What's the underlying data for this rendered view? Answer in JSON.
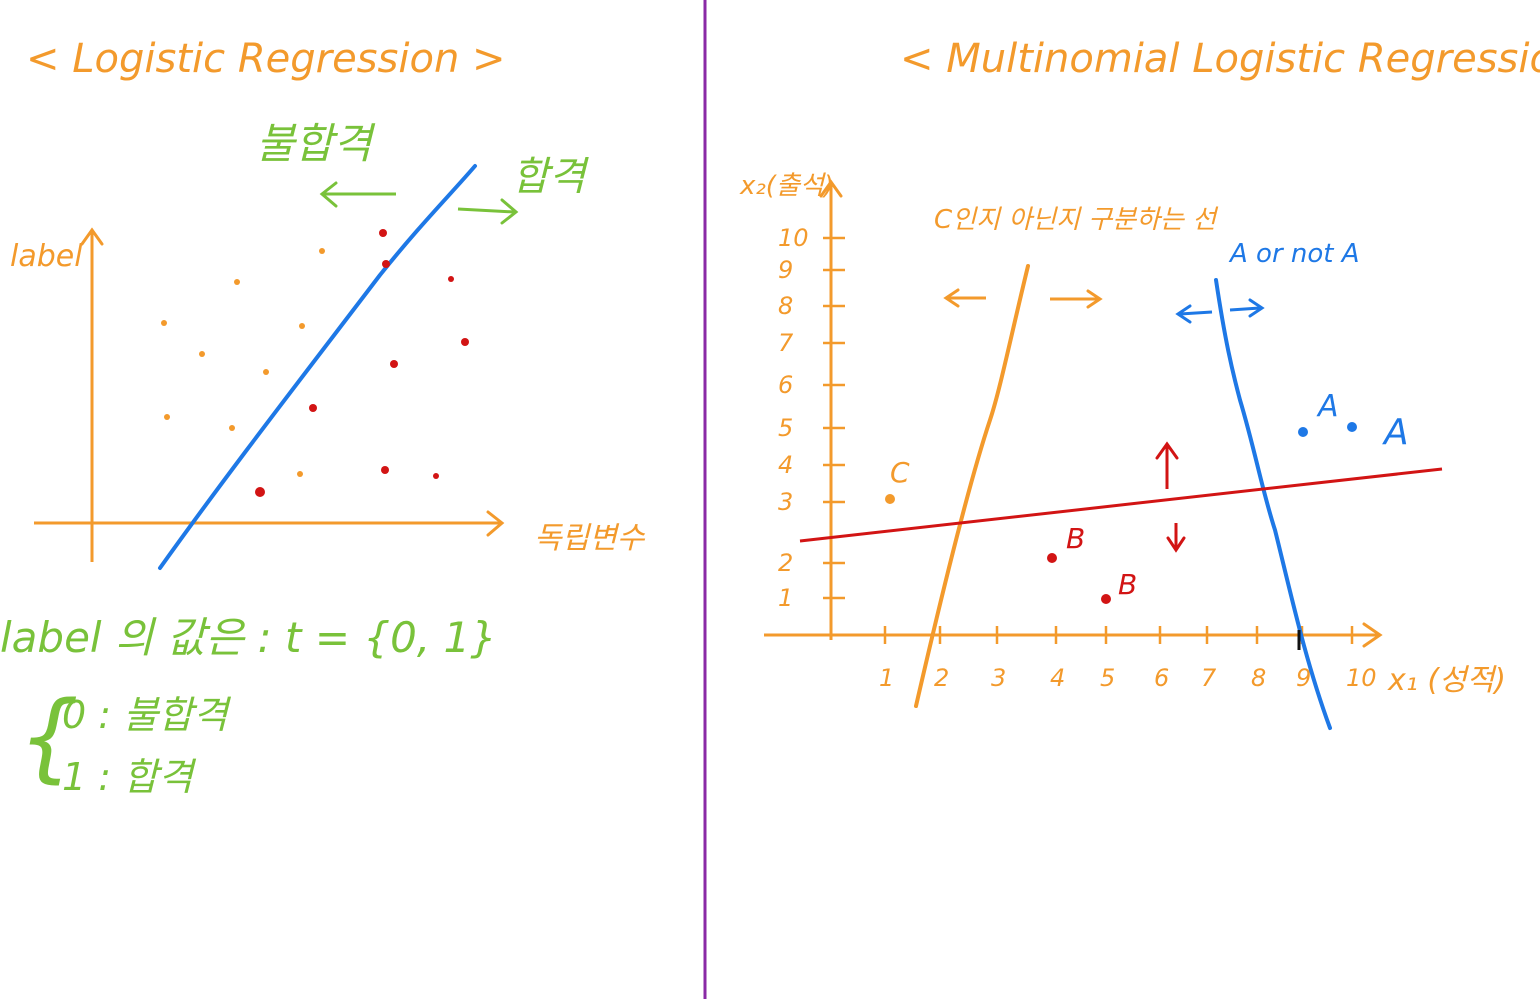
{
  "colors": {
    "orange": "#f39a2c",
    "green": "#79c23a",
    "blue": "#1e78e6",
    "red": "#d21414",
    "divider": "#8a2aa6",
    "black": "#111111"
  },
  "left": {
    "title": "< Logistic Regression >",
    "fail_label": "불합격",
    "pass_label": "합격",
    "y_axis_label": "label",
    "x_axis_label": "독립변수",
    "label_values": "label 의 값은 : t = {0, 1}",
    "brace": "{",
    "legend": [
      {
        "text": "0 : 불합격"
      },
      {
        "text": "1 : 합격"
      }
    ]
  },
  "right": {
    "title": "< Multinomial Logistic Regression >",
    "y_axis_label": "x₂(출석)",
    "x_axis_label": "x₁ (성적)",
    "c_line_label": "C인지 아닌지 구분하는 선",
    "a_line_label": "A or not A",
    "y_ticks": [
      "1",
      "2",
      "3",
      "4",
      "5",
      "6",
      "7",
      "8",
      "9",
      "10"
    ],
    "x_ticks": [
      "1",
      "2",
      "3",
      "4",
      "5",
      "6",
      "7",
      "8",
      "9",
      "10"
    ],
    "point_labels": {
      "c": "C",
      "b1": "B",
      "b2": "B",
      "a1": "A",
      "a2": "A"
    }
  }
}
